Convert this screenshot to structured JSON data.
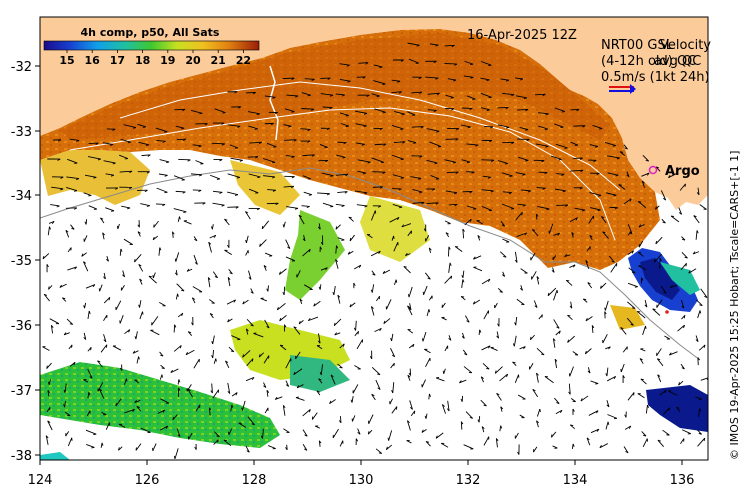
{
  "colorbar": {
    "title": "4h comp, p50, All Sats",
    "ticks": [
      "15",
      "16",
      "17",
      "18",
      "19",
      "20",
      "21",
      "22"
    ]
  },
  "map": {
    "date": "16-Apr-2025 12Z",
    "legend_lines": [
      "NRT00 GSL",
      "(4-12h old) QC",
      "0.5m/s (1kt 24h)"
    ],
    "legend_overprint": [
      "Velocity",
      "avg QC"
    ],
    "float_label": "Argo",
    "credit": "© IMOS 19-Apr-2025 15:25 Hobart; Tscale=CARS+[-1 1]",
    "x_ticks": [
      "124",
      "126",
      "128",
      "130",
      "132",
      "134",
      "136"
    ],
    "y_ticks": [
      "-32",
      "-33",
      "-34",
      "-35",
      "-36",
      "-37",
      "-38"
    ],
    "colors": {
      "land": "#FCCB9A",
      "sst_warm": "#D9720A",
      "sst_cool": "#1CB83C",
      "cold_patch": "#0A1A8C",
      "argo_marker": "#E020C0"
    }
  }
}
